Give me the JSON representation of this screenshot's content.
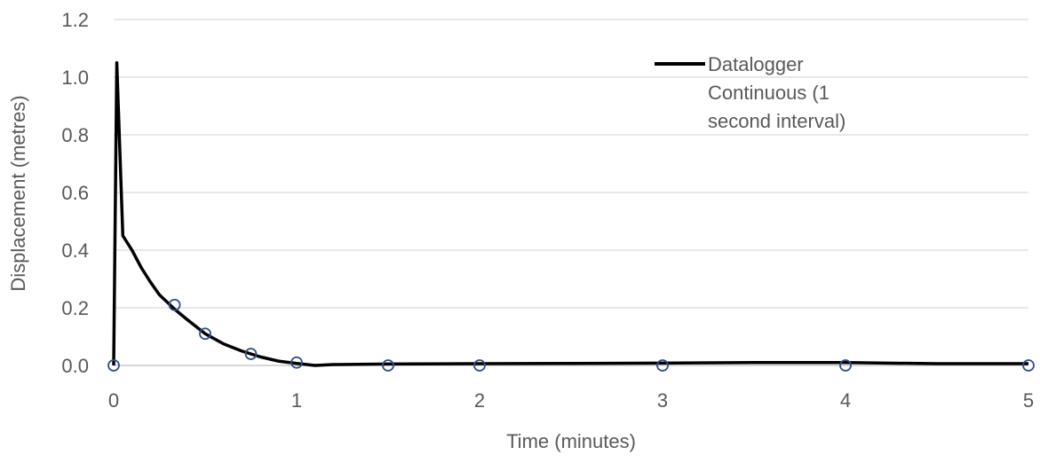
{
  "chart_data": {
    "type": "line",
    "xlabel": "Time (minutes)",
    "ylabel": "Displacement (metres)",
    "xlim": [
      0,
      5
    ],
    "ylim": [
      0,
      1.2
    ],
    "x_ticks": [
      "0",
      "1",
      "2",
      "3",
      "4",
      "5"
    ],
    "y_ticks": [
      "0.0",
      "0.2",
      "0.4",
      "0.6",
      "0.8",
      "1.0",
      "1.2"
    ],
    "grid": "horizontal",
    "legend_position": "top-right",
    "legend_entries": [
      "Datalogger Continuous (1 second interval)"
    ],
    "colors": {
      "line": "#000000",
      "markers": "#2f4f8f",
      "grid": "#d9d9d9",
      "text": "#595959"
    },
    "series": [
      {
        "name": "Datalogger Continuous (1 second interval)",
        "style": "line",
        "x": [
          0,
          0.017,
          0.05,
          0.1,
          0.15,
          0.2,
          0.25,
          0.3,
          0.333,
          0.4,
          0.5,
          0.6,
          0.7,
          0.75,
          0.8,
          0.9,
          1.0,
          1.1,
          1.2,
          1.5,
          2.0,
          2.5,
          3.0,
          3.5,
          4.0,
          4.5,
          5.0
        ],
        "y": [
          0.0,
          1.05,
          0.45,
          0.4,
          0.34,
          0.29,
          0.245,
          0.215,
          0.195,
          0.16,
          0.11,
          0.075,
          0.05,
          0.04,
          0.03,
          0.015,
          0.007,
          0.0,
          0.003,
          0.005,
          0.006,
          0.007,
          0.008,
          0.01,
          0.01,
          0.006,
          0.006
        ]
      },
      {
        "style": "markers",
        "x": [
          0,
          0.333,
          0.5,
          0.75,
          1.0,
          1.5,
          2.0,
          3.0,
          4.0,
          5.0
        ],
        "y": [
          0.0,
          0.21,
          0.11,
          0.04,
          0.01,
          0.0,
          0.0,
          0.0,
          0.0,
          0.0
        ]
      }
    ]
  }
}
